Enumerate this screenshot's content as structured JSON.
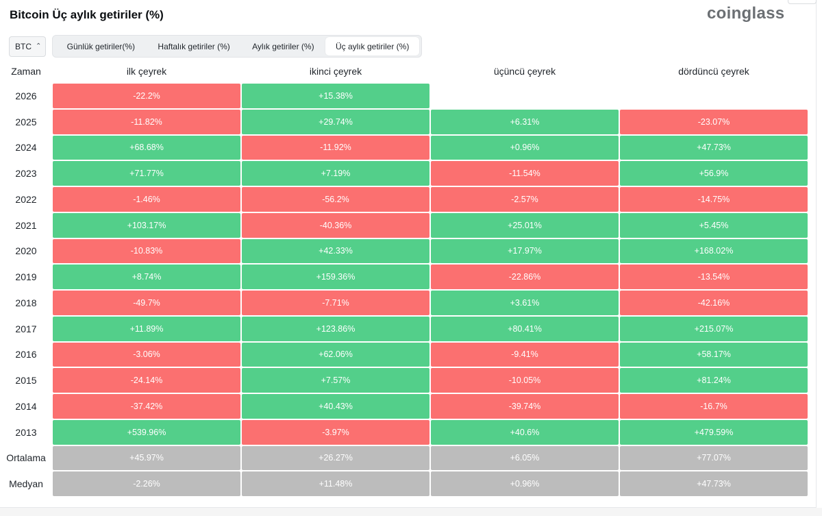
{
  "title": "Bitcoin Üç aylık getiriler (%)",
  "brand": "coinglass",
  "coin_select": {
    "value": "BTC",
    "icon": "updown-chevron-icon"
  },
  "tabs": [
    {
      "label": "Günlük getiriler(%)",
      "active": false
    },
    {
      "label": "Haftalık getiriler (%)",
      "active": false
    },
    {
      "label": "Aylık getiriler (%)",
      "active": false
    },
    {
      "label": "Üç aylık getiriler (%)",
      "active": true
    }
  ],
  "colors": {
    "positive": "#53cf8a",
    "negative": "#fb7070",
    "summary": "#bcbcbc"
  },
  "table": {
    "headers": [
      "Zaman",
      "ilk çeyrek",
      "ikinci çeyrek",
      "üçüncü çeyrek",
      "dördüncü çeyrek"
    ],
    "rows": [
      {
        "label": "2026",
        "cells": [
          "-22.2%",
          "+15.38%",
          "",
          ""
        ]
      },
      {
        "label": "2025",
        "cells": [
          "-11.82%",
          "+29.74%",
          "+6.31%",
          "-23.07%"
        ]
      },
      {
        "label": "2024",
        "cells": [
          "+68.68%",
          "-11.92%",
          "+0.96%",
          "+47.73%"
        ]
      },
      {
        "label": "2023",
        "cells": [
          "+71.77%",
          "+7.19%",
          "-11.54%",
          "+56.9%"
        ]
      },
      {
        "label": "2022",
        "cells": [
          "-1.46%",
          "-56.2%",
          "-2.57%",
          "-14.75%"
        ]
      },
      {
        "label": "2021",
        "cells": [
          "+103.17%",
          "-40.36%",
          "+25.01%",
          "+5.45%"
        ]
      },
      {
        "label": "2020",
        "cells": [
          "-10.83%",
          "+42.33%",
          "+17.97%",
          "+168.02%"
        ]
      },
      {
        "label": "2019",
        "cells": [
          "+8.74%",
          "+159.36%",
          "-22.86%",
          "-13.54%"
        ]
      },
      {
        "label": "2018",
        "cells": [
          "-49.7%",
          "-7.71%",
          "+3.61%",
          "-42.16%"
        ]
      },
      {
        "label": "2017",
        "cells": [
          "+11.89%",
          "+123.86%",
          "+80.41%",
          "+215.07%"
        ]
      },
      {
        "label": "2016",
        "cells": [
          "-3.06%",
          "+62.06%",
          "-9.41%",
          "+58.17%"
        ]
      },
      {
        "label": "2015",
        "cells": [
          "-24.14%",
          "+7.57%",
          "-10.05%",
          "+81.24%"
        ]
      },
      {
        "label": "2014",
        "cells": [
          "-37.42%",
          "+40.43%",
          "-39.74%",
          "-16.7%"
        ]
      },
      {
        "label": "2013",
        "cells": [
          "+539.96%",
          "-3.97%",
          "+40.6%",
          "+479.59%"
        ]
      }
    ],
    "summary": [
      {
        "label": "Ortalama",
        "cells": [
          "+45.97%",
          "+26.27%",
          "+6.05%",
          "+77.07%"
        ]
      },
      {
        "label": "Medyan",
        "cells": [
          "-2.26%",
          "+11.48%",
          "+0.96%",
          "+47.73%"
        ]
      }
    ]
  }
}
